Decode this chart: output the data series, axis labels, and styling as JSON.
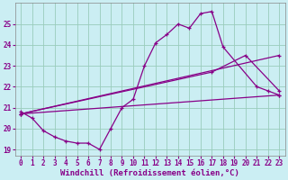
{
  "background_color": "#cbeef3",
  "grid_color": "#99ccbb",
  "line_color": "#880088",
  "xlabel": "Windchill (Refroidissement éolien,°C)",
  "xlabel_fontsize": 6.5,
  "tick_fontsize": 5.5,
  "xlim": [
    -0.5,
    23.5
  ],
  "ylim": [
    18.7,
    26.0
  ],
  "yticks": [
    19,
    20,
    21,
    22,
    23,
    24,
    25
  ],
  "xticks": [
    0,
    1,
    2,
    3,
    4,
    5,
    6,
    7,
    8,
    9,
    10,
    11,
    12,
    13,
    14,
    15,
    16,
    17,
    18,
    19,
    20,
    21,
    22,
    23
  ],
  "line1_x": [
    0,
    1,
    2,
    3,
    4,
    5,
    6,
    7,
    8,
    9,
    10,
    11,
    12,
    13,
    14,
    15,
    16,
    17,
    18,
    21,
    22,
    23
  ],
  "line1_y": [
    20.8,
    20.5,
    19.9,
    19.6,
    19.4,
    19.3,
    19.3,
    19.0,
    20.0,
    21.0,
    21.4,
    23.0,
    24.1,
    24.5,
    25.0,
    24.8,
    25.5,
    25.6,
    23.9,
    22.0,
    21.8,
    21.6
  ],
  "line2_x": [
    0,
    23
  ],
  "line2_y": [
    20.7,
    23.5
  ],
  "line3_x": [
    0,
    17,
    20,
    23
  ],
  "line3_y": [
    20.7,
    22.7,
    23.5,
    21.8
  ],
  "line4_x": [
    0,
    23
  ],
  "line4_y": [
    20.7,
    21.6
  ]
}
